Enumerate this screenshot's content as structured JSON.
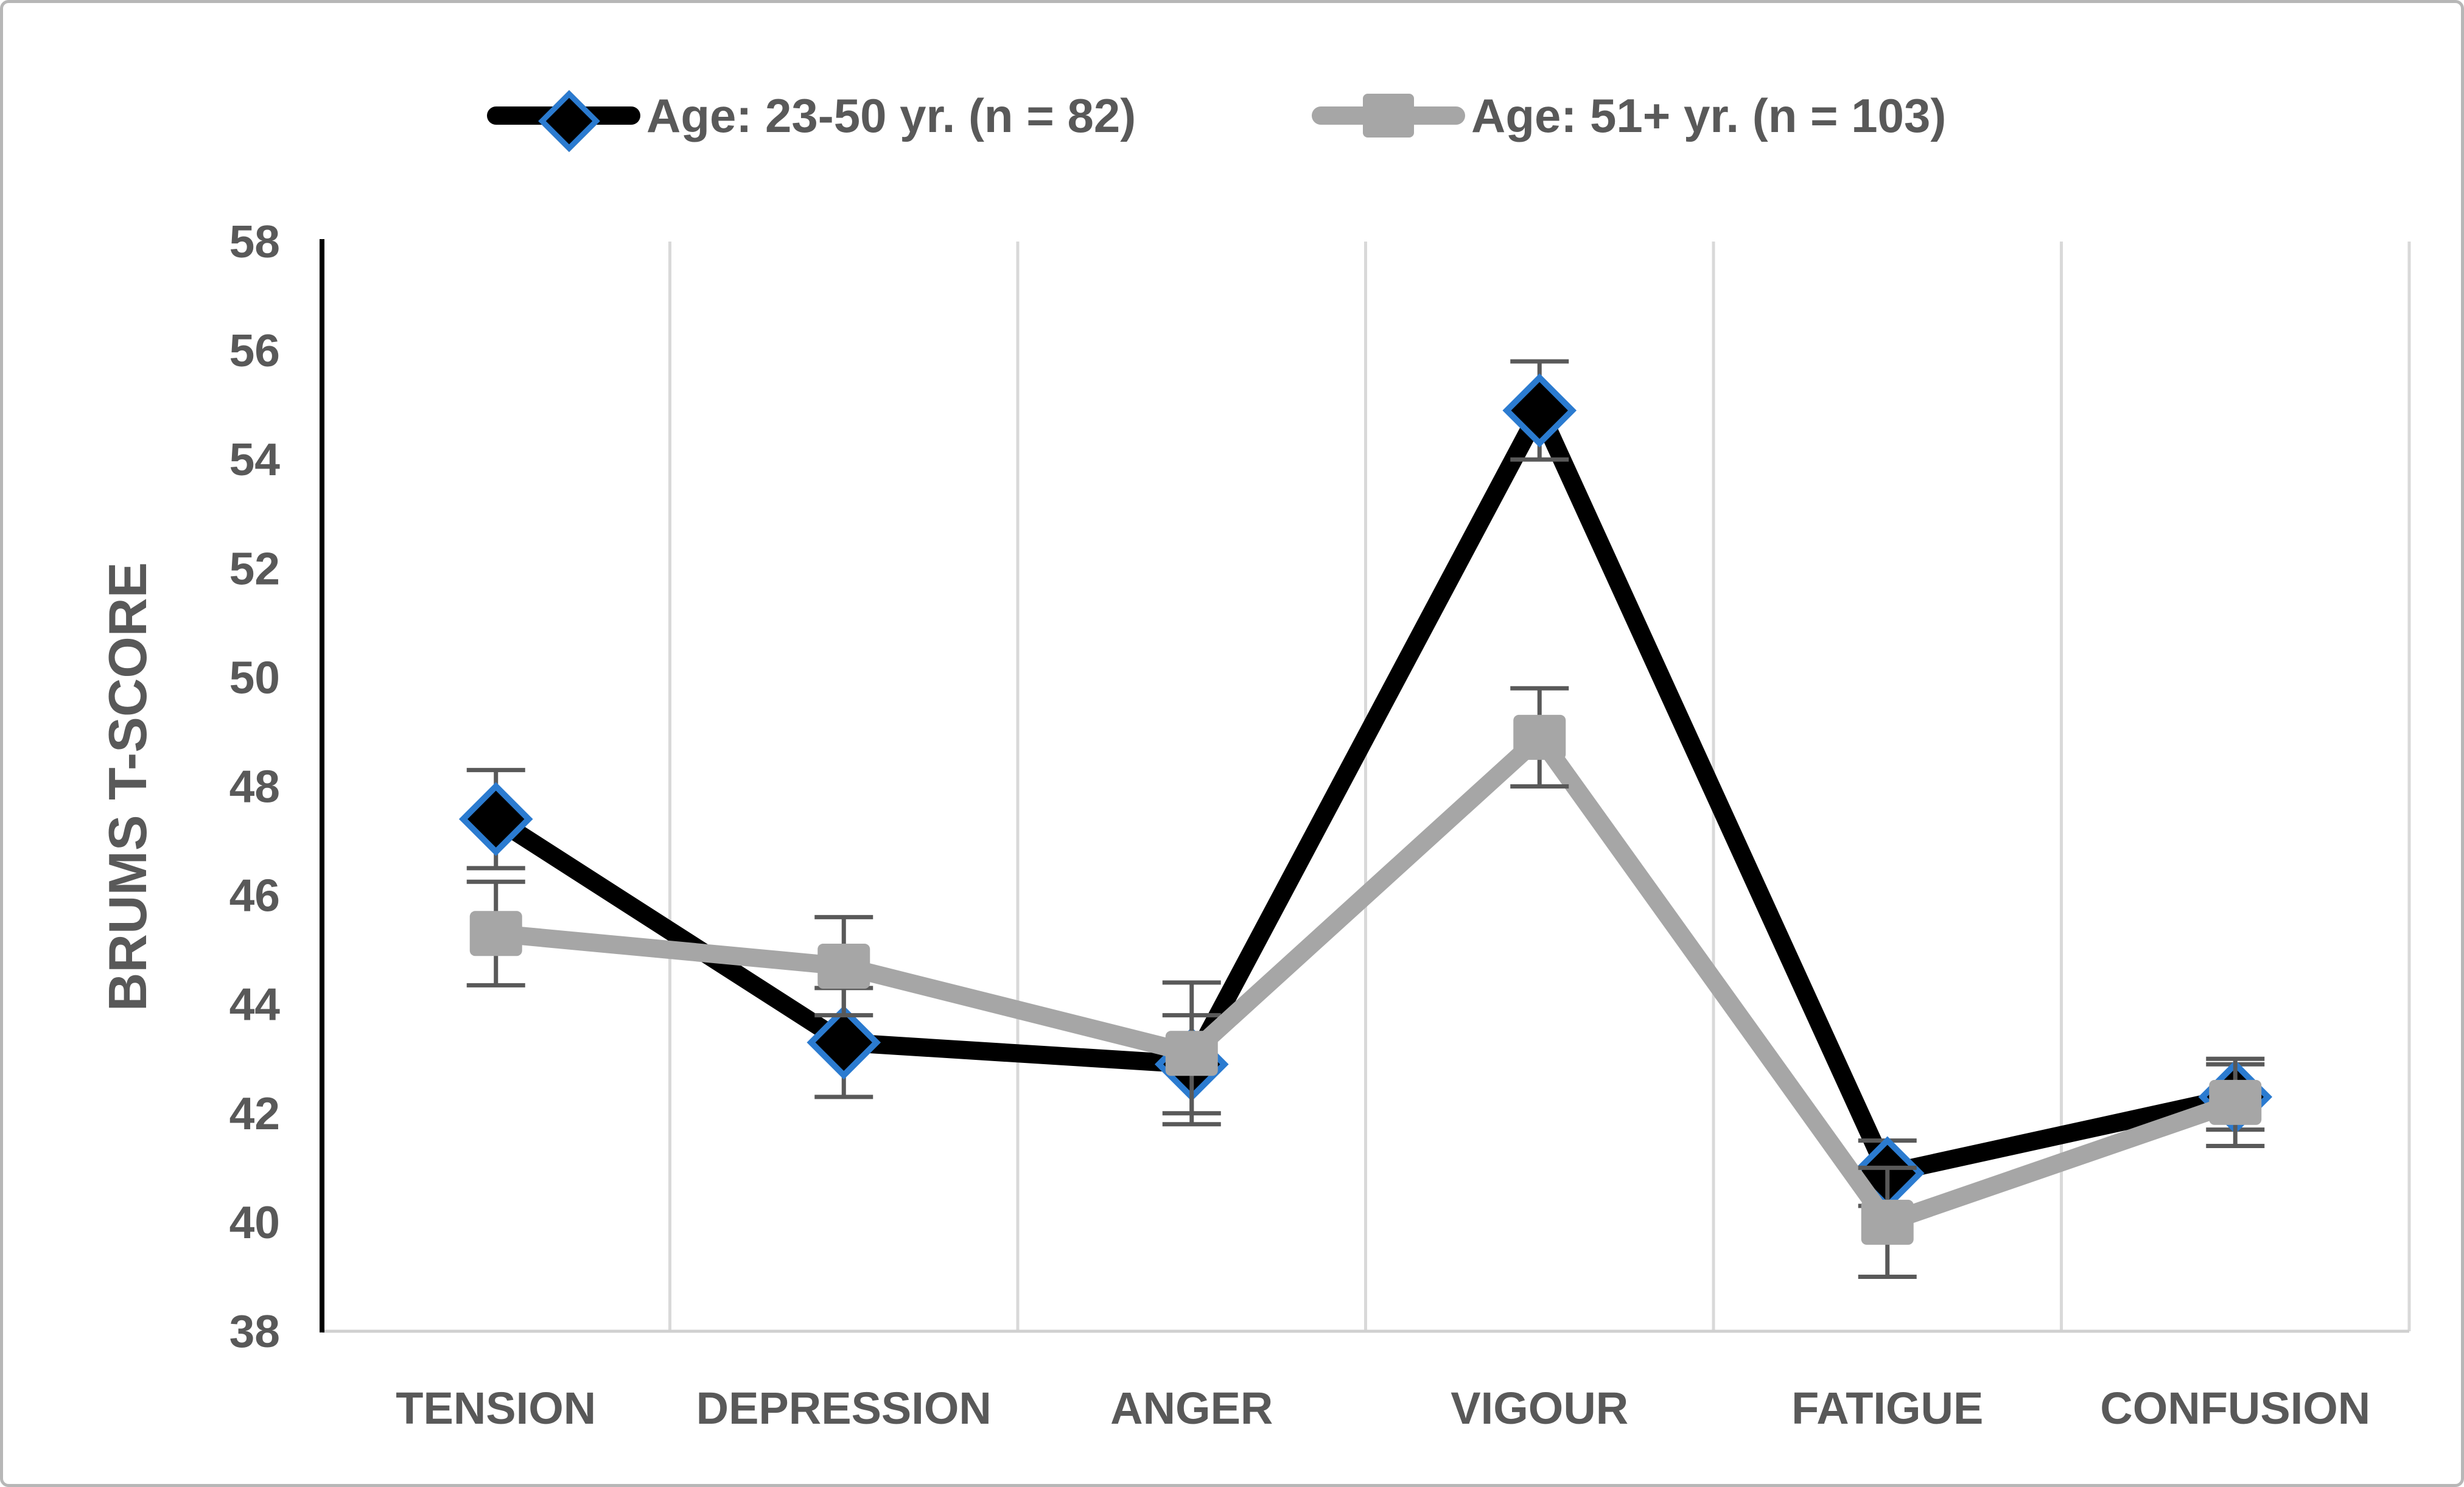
{
  "figure": {
    "background_color": "#ffffff",
    "border_color": "#b7b7b7"
  },
  "chart_data": {
    "type": "line",
    "title": "",
    "xlabel": "",
    "ylabel": "BRUMS T-SCORE",
    "ylim": [
      38,
      58
    ],
    "yticks": [
      38,
      40,
      42,
      44,
      46,
      48,
      50,
      52,
      54,
      56,
      58
    ],
    "grid": "vertical-gridlines-only",
    "legend_position": "top-center",
    "categories": [
      "TENSION",
      "DEPRESSION",
      "ANGER",
      "VIGOUR",
      "FATIGUE",
      "CONFUSION"
    ],
    "series": [
      {
        "name": "Age: 23-50 yr. (n = 82)",
        "values": [
          47.4,
          43.3,
          42.9,
          54.9,
          40.9,
          42.3
        ],
        "error_bars": [
          0.9,
          1.0,
          0.9,
          0.9,
          0.6,
          0.6
        ],
        "line_color": "#000000",
        "marker": "diamond",
        "marker_fill": "#000000",
        "marker_stroke": "#2b7bd0"
      },
      {
        "name": "Age: 51+ yr. (n = 103)",
        "values": [
          45.3,
          44.7,
          43.1,
          48.9,
          40.0,
          42.2
        ],
        "error_bars": [
          0.95,
          0.9,
          1.3,
          0.9,
          1.0,
          0.8
        ],
        "line_color": "#a6a6a6",
        "marker": "square",
        "marker_fill": "#a6a6a6",
        "marker_stroke": "#a6a6a6"
      }
    ],
    "error_bar_color": "#595959",
    "axis_text_color": "#595959",
    "gridline_color": "#d9d9d9",
    "x_axis_line_color": "#d0d0d0",
    "y_axis_line_color": "#000000"
  }
}
